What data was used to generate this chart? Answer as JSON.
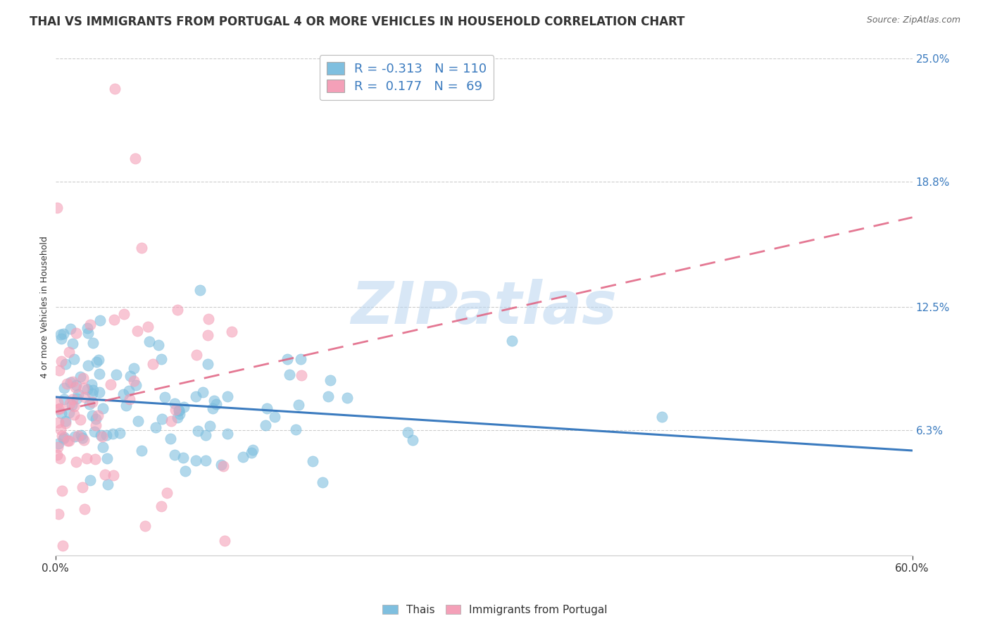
{
  "title": "THAI VS IMMIGRANTS FROM PORTUGAL 4 OR MORE VEHICLES IN HOUSEHOLD CORRELATION CHART",
  "source": "Source: ZipAtlas.com",
  "ylabel": "4 or more Vehicles in Household",
  "xlim": [
    0.0,
    60.0
  ],
  "ylim": [
    0.0,
    25.0
  ],
  "yticks": [
    6.3,
    12.5,
    18.8,
    25.0
  ],
  "ytick_labels": [
    "6.3%",
    "12.5%",
    "18.8%",
    "25.0%"
  ],
  "blue_color": "#7fbfdf",
  "pink_color": "#f4a0b8",
  "blue_line_color": "#3b7bbf",
  "pink_line_color": "#e06080",
  "grid_color": "#cccccc",
  "legend_blue_R": "-0.313",
  "legend_blue_N": "110",
  "legend_pink_R": "0.177",
  "legend_pink_N": "69",
  "watermark": "ZIPatlas",
  "background_color": "#ffffff",
  "title_fontsize": 12,
  "axis_label_fontsize": 9,
  "tick_fontsize": 11,
  "legend_fontsize": 13,
  "source_fontsize": 9
}
